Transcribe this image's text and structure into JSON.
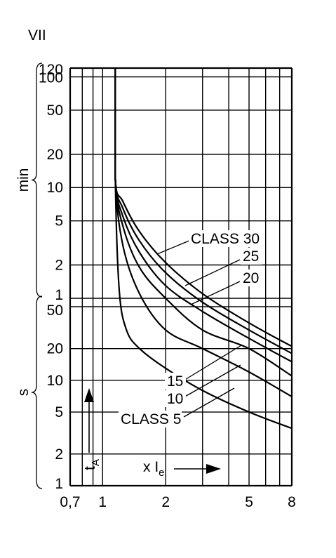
{
  "figure_label": "VII",
  "chart_data": {
    "type": "line",
    "title": "",
    "xlabel": "x I",
    "xlabel_sub": "e",
    "ylabel": "t",
    "ylabel_sub": "A",
    "x_scale": "log",
    "y_scale": "log",
    "xlim": [
      0.7,
      8
    ],
    "x_ticks": [
      {
        "value": 0.7,
        "label": "0,7"
      },
      {
        "value": 1,
        "label": "1"
      },
      {
        "value": 2,
        "label": "2"
      },
      {
        "value": 5,
        "label": "5"
      },
      {
        "value": 8,
        "label": "8"
      }
    ],
    "y_segments": [
      {
        "unit": "s",
        "range": [
          1,
          60
        ],
        "ticks": [
          {
            "value": 1,
            "label": "1"
          },
          {
            "value": 2,
            "label": "2"
          },
          {
            "value": 5,
            "label": "5"
          },
          {
            "value": 10,
            "label": "10"
          },
          {
            "value": 20,
            "label": "20"
          },
          {
            "value": 50,
            "label": "50"
          }
        ]
      },
      {
        "unit": "min",
        "range": [
          1,
          120
        ],
        "ticks": [
          {
            "value": 1,
            "label": "1"
          },
          {
            "value": 2,
            "label": "2"
          },
          {
            "value": 5,
            "label": "5"
          },
          {
            "value": 10,
            "label": "10"
          },
          {
            "value": 20,
            "label": "20"
          },
          {
            "value": 50,
            "label": "50"
          },
          {
            "value": 100,
            "label": "100"
          },
          {
            "value": 120,
            "label": "120"
          }
        ]
      }
    ],
    "grid": true,
    "series": [
      {
        "name": "CLASS 5",
        "points": [
          [
            1.15,
            "120 min"
          ],
          [
            1.15,
            "12 min"
          ],
          [
            1.2,
            "1.2 min"
          ],
          [
            1.3,
            "30 s"
          ],
          [
            1.5,
            "20 s"
          ],
          [
            2,
            "13 s"
          ],
          [
            3,
            "8 s"
          ],
          [
            5,
            "5 s"
          ],
          [
            8,
            "3.5 s"
          ]
        ]
      },
      {
        "name": "10",
        "points": [
          [
            1.15,
            "120 min"
          ],
          [
            1.15,
            "12 min"
          ],
          [
            1.25,
            "3 min"
          ],
          [
            1.5,
            "1.1 min"
          ],
          [
            2,
            "30 s"
          ],
          [
            3,
            "20 s"
          ],
          [
            5,
            "12 s"
          ],
          [
            8,
            "7 s"
          ]
        ]
      },
      {
        "name": "15",
        "points": [
          [
            1.15,
            "120 min"
          ],
          [
            1.15,
            "12 min"
          ],
          [
            1.25,
            "4.5 min"
          ],
          [
            1.5,
            "1.9 min"
          ],
          [
            2,
            "1 min"
          ],
          [
            3,
            "30 s"
          ],
          [
            5,
            "20 s"
          ],
          [
            8,
            "11 s"
          ]
        ]
      },
      {
        "name": "20",
        "points": [
          [
            1.15,
            "120 min"
          ],
          [
            1.15,
            "12 min"
          ],
          [
            1.25,
            "5.5 min"
          ],
          [
            1.5,
            "2.6 min"
          ],
          [
            2,
            "1.3 min"
          ],
          [
            3,
            "45 s"
          ],
          [
            5,
            "25 s"
          ],
          [
            8,
            "15 s"
          ]
        ]
      },
      {
        "name": "25",
        "points": [
          [
            1.15,
            "120 min"
          ],
          [
            1.15,
            "12 min"
          ],
          [
            1.25,
            "6.5 min"
          ],
          [
            1.5,
            "3.3 min"
          ],
          [
            2,
            "1.7 min"
          ],
          [
            3,
            "55 s"
          ],
          [
            5,
            "30 s"
          ],
          [
            8,
            "18 s"
          ]
        ]
      },
      {
        "name": "CLASS 30",
        "points": [
          [
            1.15,
            "120 min"
          ],
          [
            1.15,
            "12 min"
          ],
          [
            1.25,
            "7.5 min"
          ],
          [
            1.5,
            "4 min"
          ],
          [
            2,
            "2.1 min"
          ],
          [
            3,
            "1.1 min"
          ],
          [
            5,
            "35 s"
          ],
          [
            8,
            "21 s"
          ]
        ]
      }
    ]
  }
}
